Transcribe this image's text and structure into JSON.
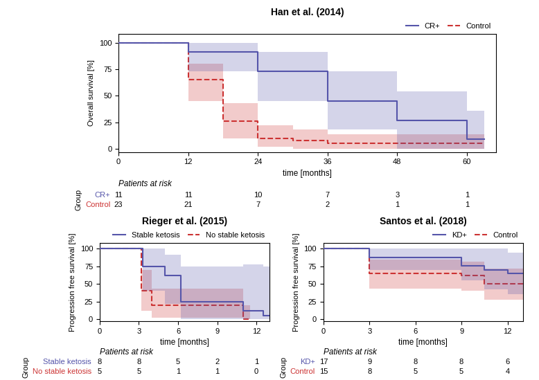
{
  "chart_data": [
    {
      "type": "line",
      "title": "Han et al. (2014)",
      "xlabel": "time [months]",
      "ylabel": "Overall survival [%]",
      "xlim": [
        0,
        65
      ],
      "ylim": [
        -3,
        108
      ],
      "xticks": [
        0,
        12,
        24,
        36,
        48,
        60
      ],
      "yticks": [
        0,
        25,
        50,
        75,
        100
      ],
      "legend": "upper right",
      "series": [
        {
          "name": "CR+",
          "color": "#5555aa",
          "line_style": "solid",
          "x": [
            0,
            12,
            12,
            24,
            24,
            36,
            36,
            48,
            48,
            60,
            60,
            63
          ],
          "values": [
            100,
            100,
            91,
            91,
            73,
            73,
            45,
            45,
            27,
            27,
            9,
            9
          ],
          "upper": [
            100,
            100,
            100,
            100,
            91,
            91,
            73,
            73,
            54,
            54,
            36,
            36
          ],
          "lower": [
            100,
            100,
            73,
            73,
            45,
            45,
            18,
            18,
            0,
            0,
            0,
            0
          ]
        },
        {
          "name": "Control",
          "color": "#cc3333",
          "line_style": "dashed",
          "x": [
            0,
            12,
            12,
            18,
            18,
            24,
            24,
            30,
            30,
            36,
            36,
            63
          ],
          "values": [
            100,
            100,
            65,
            65,
            26,
            26,
            10,
            10,
            8,
            8,
            5,
            5
          ],
          "upper": [
            100,
            100,
            80,
            80,
            43,
            43,
            22,
            22,
            18,
            18,
            14,
            14
          ],
          "lower": [
            100,
            100,
            45,
            45,
            10,
            10,
            2,
            2,
            0,
            0,
            0,
            0
          ]
        }
      ],
      "risk_table": {
        "title": "Patients at risk",
        "group_label": "Group",
        "times": [
          0,
          12,
          24,
          36,
          48,
          60
        ],
        "rows": [
          {
            "name": "CR+",
            "values": [
              11,
              11,
              10,
              7,
              3,
              1
            ]
          },
          {
            "name": "Control",
            "values": [
              23,
              21,
              7,
              2,
              1,
              1
            ]
          }
        ]
      }
    },
    {
      "type": "line",
      "title": "Rieger et al. (2015)",
      "xlabel": "time [months]",
      "ylabel": "Progression free survival [%]",
      "xlim": [
        0,
        13
      ],
      "ylim": [
        -3,
        108
      ],
      "xticks": [
        0,
        3,
        6,
        9,
        12
      ],
      "yticks": [
        0,
        25,
        50,
        75,
        100
      ],
      "legend": "upper right",
      "series": [
        {
          "name": "Stable ketosis",
          "color": "#5555aa",
          "line_style": "solid",
          "x": [
            0,
            3.3,
            3.3,
            5,
            5,
            6.2,
            6.2,
            11,
            11,
            12.5,
            12.5,
            13
          ],
          "values": [
            100,
            100,
            75,
            75,
            62,
            62,
            25,
            25,
            12,
            12,
            5,
            5
          ],
          "upper": [
            100,
            100,
            100,
            100,
            92,
            92,
            75,
            75,
            78,
            78,
            75,
            75
          ],
          "lower": [
            100,
            100,
            40,
            40,
            22,
            22,
            0,
            0,
            0,
            0,
            0,
            0
          ]
        },
        {
          "name": "No stable ketosis",
          "color": "#cc3333",
          "line_style": "dashed",
          "x": [
            0,
            3.2,
            3.2,
            4,
            4,
            4.5,
            4.5,
            11,
            11,
            11.5
          ],
          "values": [
            100,
            100,
            40,
            40,
            20,
            20,
            20,
            20,
            0,
            0
          ],
          "upper": [
            100,
            100,
            70,
            70,
            43,
            43,
            43,
            43,
            20,
            20
          ],
          "lower": [
            100,
            100,
            12,
            12,
            2,
            2,
            2,
            2,
            0,
            0
          ]
        }
      ],
      "risk_table": {
        "title": "Patients at risk",
        "group_label": "Group",
        "times": [
          0,
          3,
          6,
          9,
          12
        ],
        "rows": [
          {
            "name": "Stable ketosis",
            "values": [
              8,
              8,
              5,
              2,
              1
            ]
          },
          {
            "name": "No stable ketosis",
            "values": [
              5,
              5,
              1,
              1,
              0
            ]
          }
        ]
      }
    },
    {
      "type": "line",
      "title": "Santos et al. (2018)",
      "xlabel": "time [months]",
      "ylabel": "Progression free survival [%]",
      "xlim": [
        0,
        13
      ],
      "ylim": [
        -3,
        108
      ],
      "xticks": [
        0,
        3,
        6,
        9,
        12
      ],
      "yticks": [
        0,
        25,
        50,
        75,
        100
      ],
      "legend": "upper right",
      "series": [
        {
          "name": "KD+",
          "color": "#5555aa",
          "line_style": "solid",
          "x": [
            0,
            3,
            3,
            9,
            9,
            10.5,
            10.5,
            12,
            12,
            13
          ],
          "values": [
            100,
            100,
            88,
            88,
            76,
            76,
            70,
            70,
            65,
            65
          ],
          "upper": [
            100,
            100,
            100,
            100,
            100,
            100,
            100,
            100,
            95,
            95
          ],
          "lower": [
            100,
            100,
            70,
            70,
            55,
            55,
            42,
            42,
            35,
            35
          ]
        },
        {
          "name": "Control",
          "color": "#cc3333",
          "line_style": "dashed",
          "x": [
            0,
            3,
            3,
            9,
            9,
            10.5,
            10.5,
            12,
            12,
            13
          ],
          "values": [
            100,
            100,
            65,
            65,
            62,
            62,
            50,
            50,
            50,
            50
          ],
          "upper": [
            100,
            100,
            85,
            85,
            82,
            82,
            72,
            72,
            72,
            72
          ],
          "lower": [
            100,
            100,
            43,
            43,
            40,
            40,
            27,
            27,
            27,
            27
          ]
        }
      ],
      "risk_table": {
        "title": "Patients at risk",
        "group_label": "Group",
        "times": [
          0,
          3,
          6,
          9,
          12
        ],
        "rows": [
          {
            "name": "KD+",
            "values": [
              17,
              9,
              8,
              8,
              6
            ]
          },
          {
            "name": "Control",
            "values": [
              15,
              8,
              5,
              5,
              4
            ]
          }
        ]
      }
    }
  ]
}
